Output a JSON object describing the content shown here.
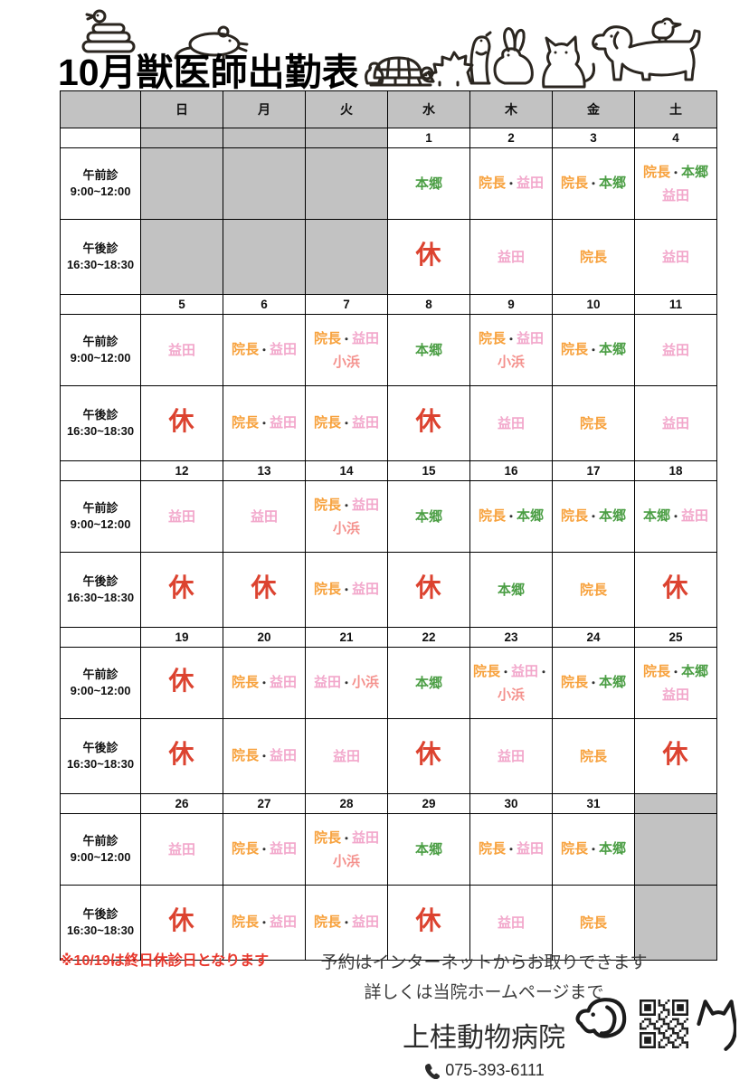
{
  "title": "10月獣医師出勤表",
  "weekdays": [
    "日",
    "月",
    "火",
    "水",
    "木",
    "金",
    "土"
  ],
  "session_rows": {
    "morning": {
      "label": "午前診",
      "time": "9:00~12:00"
    },
    "afternoon": {
      "label": "午後診",
      "time": "16:30~18:30"
    }
  },
  "staff_colors": {
    "director": "#F7A13C",
    "masuda": "#F2A7CB",
    "kohama": "#F4908C",
    "hongo": "#4B9E44",
    "closed": "#DC4330",
    "sep": "#333333"
  },
  "date_red_color": "#E8382D",
  "gray_cell_color": "#C2C2C2",
  "weeks": [
    {
      "days": [
        {
          "gray": true
        },
        {
          "gray": true
        },
        {
          "gray": true
        },
        {
          "date": "1",
          "am": [
            [
              [
                "本郷",
                "hongo"
              ]
            ]
          ],
          "pm": [
            [
              [
                "休",
                "closed"
              ]
            ]
          ]
        },
        {
          "date": "2",
          "am": [
            [
              [
                "院長",
                "director"
              ],
              [
                "・",
                "sep"
              ],
              [
                "益田",
                "masuda"
              ]
            ]
          ],
          "pm": [
            [
              [
                "益田",
                "masuda"
              ]
            ]
          ]
        },
        {
          "date": "3",
          "am": [
            [
              [
                "院長",
                "director"
              ],
              [
                "・",
                "sep"
              ],
              [
                "本郷",
                "hongo"
              ]
            ]
          ],
          "pm": [
            [
              [
                "院長",
                "director"
              ]
            ]
          ]
        },
        {
          "date": "4",
          "am": [
            [
              [
                "院長",
                "director"
              ],
              [
                "・",
                "sep"
              ],
              [
                "本郷",
                "hongo"
              ]
            ],
            [
              [
                "益田",
                "masuda"
              ]
            ]
          ],
          "pm": [
            [
              [
                "益田",
                "masuda"
              ]
            ]
          ]
        }
      ]
    },
    {
      "days": [
        {
          "date": "5",
          "red": true,
          "am": [
            [
              [
                "益田",
                "masuda"
              ]
            ]
          ],
          "pm": [
            [
              [
                "休",
                "closed"
              ]
            ]
          ]
        },
        {
          "date": "6",
          "am": [
            [
              [
                "院長",
                "director"
              ],
              [
                "・",
                "sep"
              ],
              [
                "益田",
                "masuda"
              ]
            ]
          ],
          "pm": [
            [
              [
                "院長",
                "director"
              ],
              [
                "・",
                "sep"
              ],
              [
                "益田",
                "masuda"
              ]
            ]
          ]
        },
        {
          "date": "7",
          "am": [
            [
              [
                "院長",
                "director"
              ],
              [
                "・",
                "sep"
              ],
              [
                "益田",
                "masuda"
              ]
            ],
            [
              [
                "小浜",
                "kohama"
              ]
            ]
          ],
          "pm": [
            [
              [
                "院長",
                "director"
              ],
              [
                "・",
                "sep"
              ],
              [
                "益田",
                "masuda"
              ]
            ]
          ]
        },
        {
          "date": "8",
          "am": [
            [
              [
                "本郷",
                "hongo"
              ]
            ]
          ],
          "pm": [
            [
              [
                "休",
                "closed"
              ]
            ]
          ]
        },
        {
          "date": "9",
          "am": [
            [
              [
                "院長",
                "director"
              ],
              [
                "・",
                "sep"
              ],
              [
                "益田",
                "masuda"
              ]
            ],
            [
              [
                "小浜",
                "kohama"
              ]
            ]
          ],
          "pm": [
            [
              [
                "益田",
                "masuda"
              ]
            ]
          ]
        },
        {
          "date": "10",
          "am": [
            [
              [
                "院長",
                "director"
              ],
              [
                "・",
                "sep"
              ],
              [
                "本郷",
                "hongo"
              ]
            ]
          ],
          "pm": [
            [
              [
                "院長",
                "director"
              ]
            ]
          ]
        },
        {
          "date": "11",
          "am": [
            [
              [
                "益田",
                "masuda"
              ]
            ]
          ],
          "pm": [
            [
              [
                "益田",
                "masuda"
              ]
            ]
          ]
        }
      ]
    },
    {
      "days": [
        {
          "date": "12",
          "red": true,
          "am": [
            [
              [
                "益田",
                "masuda"
              ]
            ]
          ],
          "pm": [
            [
              [
                "休",
                "closed"
              ]
            ]
          ]
        },
        {
          "date": "13",
          "red": true,
          "am": [
            [
              [
                "益田",
                "masuda"
              ]
            ]
          ],
          "pm": [
            [
              [
                "休",
                "closed"
              ]
            ]
          ]
        },
        {
          "date": "14",
          "am": [
            [
              [
                "院長",
                "director"
              ],
              [
                "・",
                "sep"
              ],
              [
                "益田",
                "masuda"
              ]
            ],
            [
              [
                "小浜",
                "kohama"
              ]
            ]
          ],
          "pm": [
            [
              [
                "院長",
                "director"
              ],
              [
                "・",
                "sep"
              ],
              [
                "益田",
                "masuda"
              ]
            ]
          ]
        },
        {
          "date": "15",
          "am": [
            [
              [
                "本郷",
                "hongo"
              ]
            ]
          ],
          "pm": [
            [
              [
                "休",
                "closed"
              ]
            ]
          ]
        },
        {
          "date": "16",
          "am": [
            [
              [
                "院長",
                "director"
              ],
              [
                "・",
                "sep"
              ],
              [
                "本郷",
                "hongo"
              ]
            ]
          ],
          "pm": [
            [
              [
                "本郷",
                "hongo"
              ]
            ]
          ]
        },
        {
          "date": "17",
          "am": [
            [
              [
                "院長",
                "director"
              ],
              [
                "・",
                "sep"
              ],
              [
                "本郷",
                "hongo"
              ]
            ]
          ],
          "pm": [
            [
              [
                "院長",
                "director"
              ]
            ]
          ]
        },
        {
          "date": "18",
          "am": [
            [
              [
                "本郷",
                "hongo"
              ],
              [
                "・",
                "sep"
              ],
              [
                "益田",
                "masuda"
              ]
            ]
          ],
          "pm": [
            [
              [
                "休",
                "closed"
              ]
            ]
          ]
        }
      ]
    },
    {
      "days": [
        {
          "date": "19",
          "red": true,
          "am": [
            [
              [
                "休",
                "closed"
              ]
            ]
          ],
          "pm": [
            [
              [
                "休",
                "closed"
              ]
            ]
          ]
        },
        {
          "date": "20",
          "am": [
            [
              [
                "院長",
                "director"
              ],
              [
                "・",
                "sep"
              ],
              [
                "益田",
                "masuda"
              ]
            ]
          ],
          "pm": [
            [
              [
                "院長",
                "director"
              ],
              [
                "・",
                "sep"
              ],
              [
                "益田",
                "masuda"
              ]
            ]
          ]
        },
        {
          "date": "21",
          "am": [
            [
              [
                "益田",
                "masuda"
              ],
              [
                "・",
                "sep"
              ],
              [
                "小浜",
                "kohama"
              ]
            ]
          ],
          "pm": [
            [
              [
                "益田",
                "masuda"
              ]
            ]
          ]
        },
        {
          "date": "22",
          "am": [
            [
              [
                "本郷",
                "hongo"
              ]
            ]
          ],
          "pm": [
            [
              [
                "休",
                "closed"
              ]
            ]
          ]
        },
        {
          "date": "23",
          "am": [
            [
              [
                "院長",
                "director"
              ],
              [
                "・",
                "sep"
              ],
              [
                "益田",
                "masuda"
              ],
              [
                "・",
                "sep"
              ]
            ],
            [
              [
                "小浜",
                "kohama"
              ]
            ]
          ],
          "pm": [
            [
              [
                "益田",
                "masuda"
              ]
            ]
          ]
        },
        {
          "date": "24",
          "am": [
            [
              [
                "院長",
                "director"
              ],
              [
                "・",
                "sep"
              ],
              [
                "本郷",
                "hongo"
              ]
            ]
          ],
          "pm": [
            [
              [
                "院長",
                "director"
              ]
            ]
          ]
        },
        {
          "date": "25",
          "am": [
            [
              [
                "院長",
                "director"
              ],
              [
                "・",
                "sep"
              ],
              [
                "本郷",
                "hongo"
              ]
            ],
            [
              [
                "益田",
                "masuda"
              ]
            ]
          ],
          "pm": [
            [
              [
                "休",
                "closed"
              ]
            ]
          ]
        }
      ]
    },
    {
      "days": [
        {
          "date": "26",
          "red": true,
          "am": [
            [
              [
                "益田",
                "masuda"
              ]
            ]
          ],
          "pm": [
            [
              [
                "休",
                "closed"
              ]
            ]
          ]
        },
        {
          "date": "27",
          "am": [
            [
              [
                "院長",
                "director"
              ],
              [
                "・",
                "sep"
              ],
              [
                "益田",
                "masuda"
              ]
            ]
          ],
          "pm": [
            [
              [
                "院長",
                "director"
              ],
              [
                "・",
                "sep"
              ],
              [
                "益田",
                "masuda"
              ]
            ]
          ]
        },
        {
          "date": "28",
          "am": [
            [
              [
                "院長",
                "director"
              ],
              [
                "・",
                "sep"
              ],
              [
                "益田",
                "masuda"
              ]
            ],
            [
              [
                "小浜",
                "kohama"
              ]
            ]
          ],
          "pm": [
            [
              [
                "院長",
                "director"
              ],
              [
                "・",
                "sep"
              ],
              [
                "益田",
                "masuda"
              ]
            ]
          ]
        },
        {
          "date": "29",
          "am": [
            [
              [
                "本郷",
                "hongo"
              ]
            ]
          ],
          "pm": [
            [
              [
                "休",
                "closed"
              ]
            ]
          ]
        },
        {
          "date": "30",
          "am": [
            [
              [
                "院長",
                "director"
              ],
              [
                "・",
                "sep"
              ],
              [
                "益田",
                "masuda"
              ]
            ]
          ],
          "pm": [
            [
              [
                "益田",
                "masuda"
              ]
            ]
          ]
        },
        {
          "date": "31",
          "am": [
            [
              [
                "院長",
                "director"
              ],
              [
                "・",
                "sep"
              ],
              [
                "本郷",
                "hongo"
              ]
            ]
          ],
          "pm": [
            [
              [
                "院長",
                "director"
              ]
            ]
          ]
        },
        {
          "gray": true
        }
      ]
    }
  ],
  "footnote": "※10/19は終日休診日となります",
  "booking_notes": [
    "予約はインターネットからお取りできます",
    "詳しくは当院ホームページまで"
  ],
  "clinic": {
    "name": "上桂動物病院",
    "phone": "075-393-6111"
  }
}
